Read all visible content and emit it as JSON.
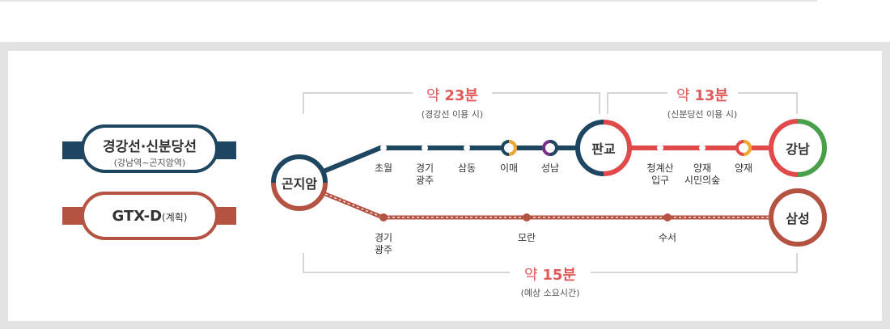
{
  "legend": {
    "gyeonggang": {
      "title": "경강선·신분당선",
      "subtitle": "(강남역~곤지암역)",
      "color": "#1e4660"
    },
    "gtxd": {
      "title": "GTX-D",
      "suffix": "(계획)",
      "color": "#b55343"
    }
  },
  "durations": {
    "d1": {
      "value": "약 ",
      "num": "23분",
      "note": "(경강선 이용 시)"
    },
    "d2": {
      "value": "약 ",
      "num": "13분",
      "note": "(신분당선 이용 시)"
    },
    "d3": {
      "value": "약 ",
      "num": "15분",
      "note": "(예상 소요시간)"
    }
  },
  "stations": {
    "gonjiam": "곤지암",
    "chowol": "초월",
    "gyeonggi_gwangju_1": "경기",
    "gyeonggi_gwangju_2": "광주",
    "samdong": "삼동",
    "imae": "이매",
    "seongnam": "성남",
    "pangyo": "판교",
    "cheonggyesan_1": "청계산",
    "cheonggyesan_2": "입구",
    "yangjae_park_1": "양재",
    "yangjae_park_2": "시민의숲",
    "yangjae": "양재",
    "gangnam": "강남",
    "gtx_gwangju_1": "경기",
    "gtx_gwangju_2": "광주",
    "moran": "모란",
    "suseo": "수서",
    "samseong": "삼성"
  },
  "colors": {
    "navy": "#1e4660",
    "red": "#e04a4a",
    "brick": "#b55343",
    "orange": "#f0a830",
    "purple": "#7a2e8a",
    "green": "#4aa04a",
    "accent_text": "#e05a5a"
  }
}
